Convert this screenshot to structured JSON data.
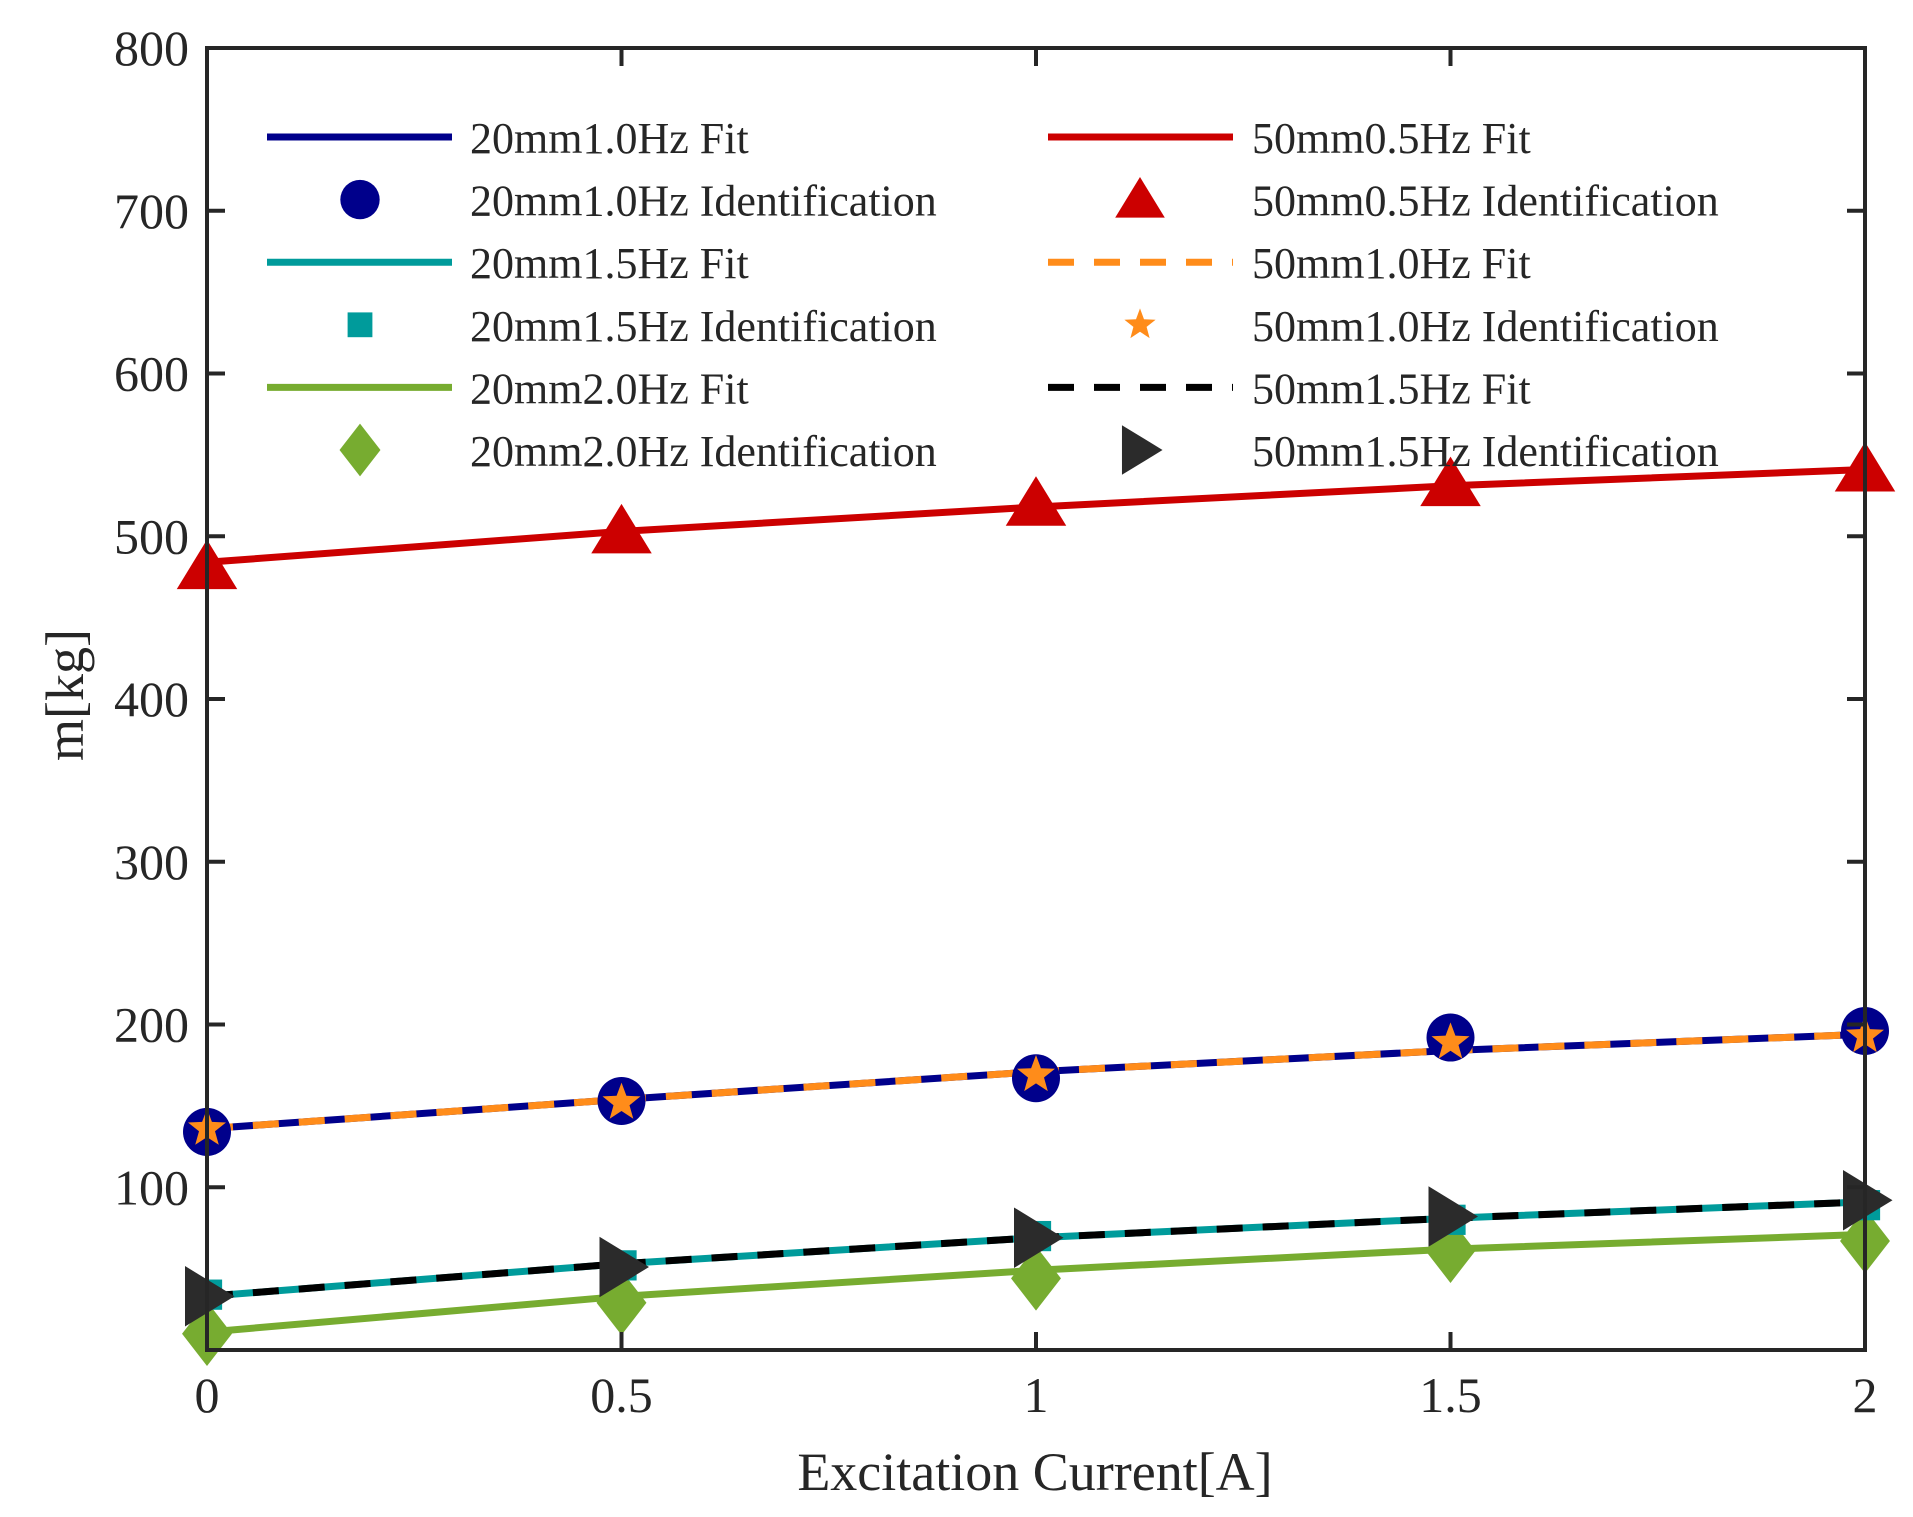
{
  "chart_data": {
    "type": "line",
    "title": "",
    "xlabel": "Excitation Current[A]",
    "ylabel": "m[kg]",
    "xlim": [
      0,
      2
    ],
    "ylim": [
      0,
      800
    ],
    "xticks": [
      0,
      0.5,
      1,
      1.5,
      2
    ],
    "xtick_labels": [
      "0",
      "0.5",
      "1",
      "1.5",
      "2"
    ],
    "yticks": [
      100,
      200,
      300,
      400,
      500,
      600,
      700,
      800
    ],
    "ytick_labels": [
      "100",
      "200",
      "300",
      "400",
      "500",
      "600",
      "700",
      "800"
    ],
    "grid": false,
    "legend_position": "top",
    "x": [
      0,
      0.5,
      1,
      1.5,
      2
    ],
    "series": [
      {
        "name": "20mm1.0Hz Fit",
        "kind": "fit",
        "line": "solid",
        "color": "#00008B",
        "values": [
          136,
          154,
          171,
          184,
          194
        ]
      },
      {
        "name": "20mm1.0Hz Identification",
        "kind": "identification",
        "marker": "circle",
        "color": "#00008B",
        "values": [
          134,
          153,
          167,
          192,
          196
        ]
      },
      {
        "name": "20mm1.5Hz Fit",
        "kind": "fit",
        "line": "solid",
        "color": "#009B9B",
        "values": [
          33,
          53,
          69,
          81,
          91
        ]
      },
      {
        "name": "20mm1.5Hz Identification",
        "kind": "identification",
        "marker": "square",
        "color": "#009B9B",
        "values": [
          34,
          52,
          70,
          80,
          89
        ]
      },
      {
        "name": "20mm2.0Hz Fit",
        "kind": "fit",
        "line": "solid",
        "color": "#77AC30",
        "values": [
          11,
          33,
          49,
          62,
          71
        ]
      },
      {
        "name": "20mm2.0Hz Identification",
        "kind": "identification",
        "marker": "diamond",
        "color": "#77AC30",
        "values": [
          10,
          29,
          44,
          61,
          67
        ]
      },
      {
        "name": "50mm0.5Hz Fit",
        "kind": "fit",
        "line": "solid",
        "color": "#CC0000",
        "values": [
          484,
          503,
          518,
          531,
          541
        ]
      },
      {
        "name": "50mm0.5Hz Identification",
        "kind": "identification",
        "marker": "triangle-up",
        "color": "#CC0000",
        "values": [
          481,
          503,
          520,
          532,
          541
        ]
      },
      {
        "name": "50mm1.0Hz Fit",
        "kind": "fit",
        "line": "dashed",
        "color": "#FF8C1A",
        "values": [
          136,
          154,
          171,
          184,
          194
        ]
      },
      {
        "name": "50mm1.0Hz Identification",
        "kind": "identification",
        "marker": "star",
        "color": "#FF8C1A",
        "values": [
          136,
          152,
          169,
          189,
          193
        ]
      },
      {
        "name": "50mm1.5Hz Fit",
        "kind": "fit",
        "line": "dashed",
        "color": "#000000",
        "values": [
          33,
          53,
          69,
          81,
          91
        ]
      },
      {
        "name": "50mm1.5Hz Identification",
        "kind": "identification",
        "marker": "triangle-right",
        "color": "#2B2B2B",
        "values": [
          33,
          51,
          69,
          82,
          92
        ]
      }
    ]
  }
}
